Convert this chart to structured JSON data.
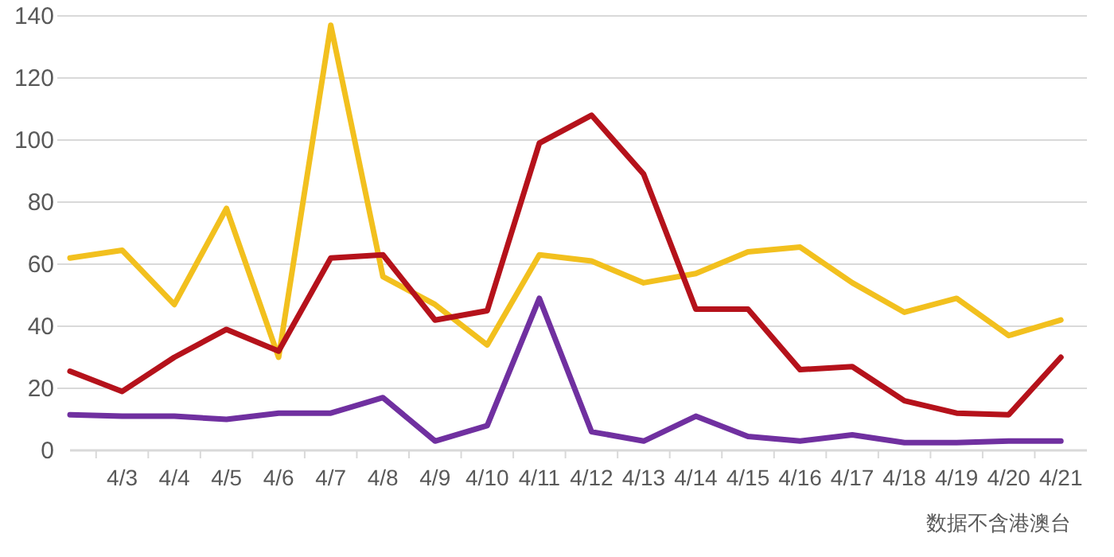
{
  "chart_data": {
    "type": "line",
    "categories": [
      null,
      "4/3",
      "4/4",
      "4/5",
      "4/6",
      "4/7",
      "4/8",
      "4/9",
      "4/10",
      "4/11",
      "4/12",
      "4/13",
      "4/14",
      "4/15",
      "4/16",
      "4/17",
      "4/18",
      "4/19",
      "4/20",
      "4/21"
    ],
    "series": [
      {
        "color": "#f2c01e",
        "values": [
          62,
          64.5,
          47,
          78,
          30,
          137,
          56,
          47,
          34,
          63,
          61,
          54,
          57,
          64,
          65.5,
          54,
          44.5,
          49,
          37,
          42
        ]
      },
      {
        "color": "#b5121b",
        "values": [
          25.5,
          19,
          30,
          39,
          32,
          62,
          63,
          42,
          45,
          99,
          108,
          89,
          45.5,
          45.5,
          26,
          27,
          16,
          12,
          11.5,
          30
        ]
      },
      {
        "color": "#7030a0",
        "values": [
          11.5,
          11,
          11,
          10,
          12,
          12,
          17,
          3,
          8,
          49,
          6,
          3,
          11,
          4.5,
          3,
          5,
          2.5,
          2.5,
          3,
          3
        ]
      }
    ],
    "ylim": [
      0,
      140
    ],
    "yticks": [
      0,
      20,
      40,
      60,
      80,
      100,
      120,
      140
    ],
    "grid": "y",
    "annotations": [
      "数据不含港澳台"
    ]
  }
}
